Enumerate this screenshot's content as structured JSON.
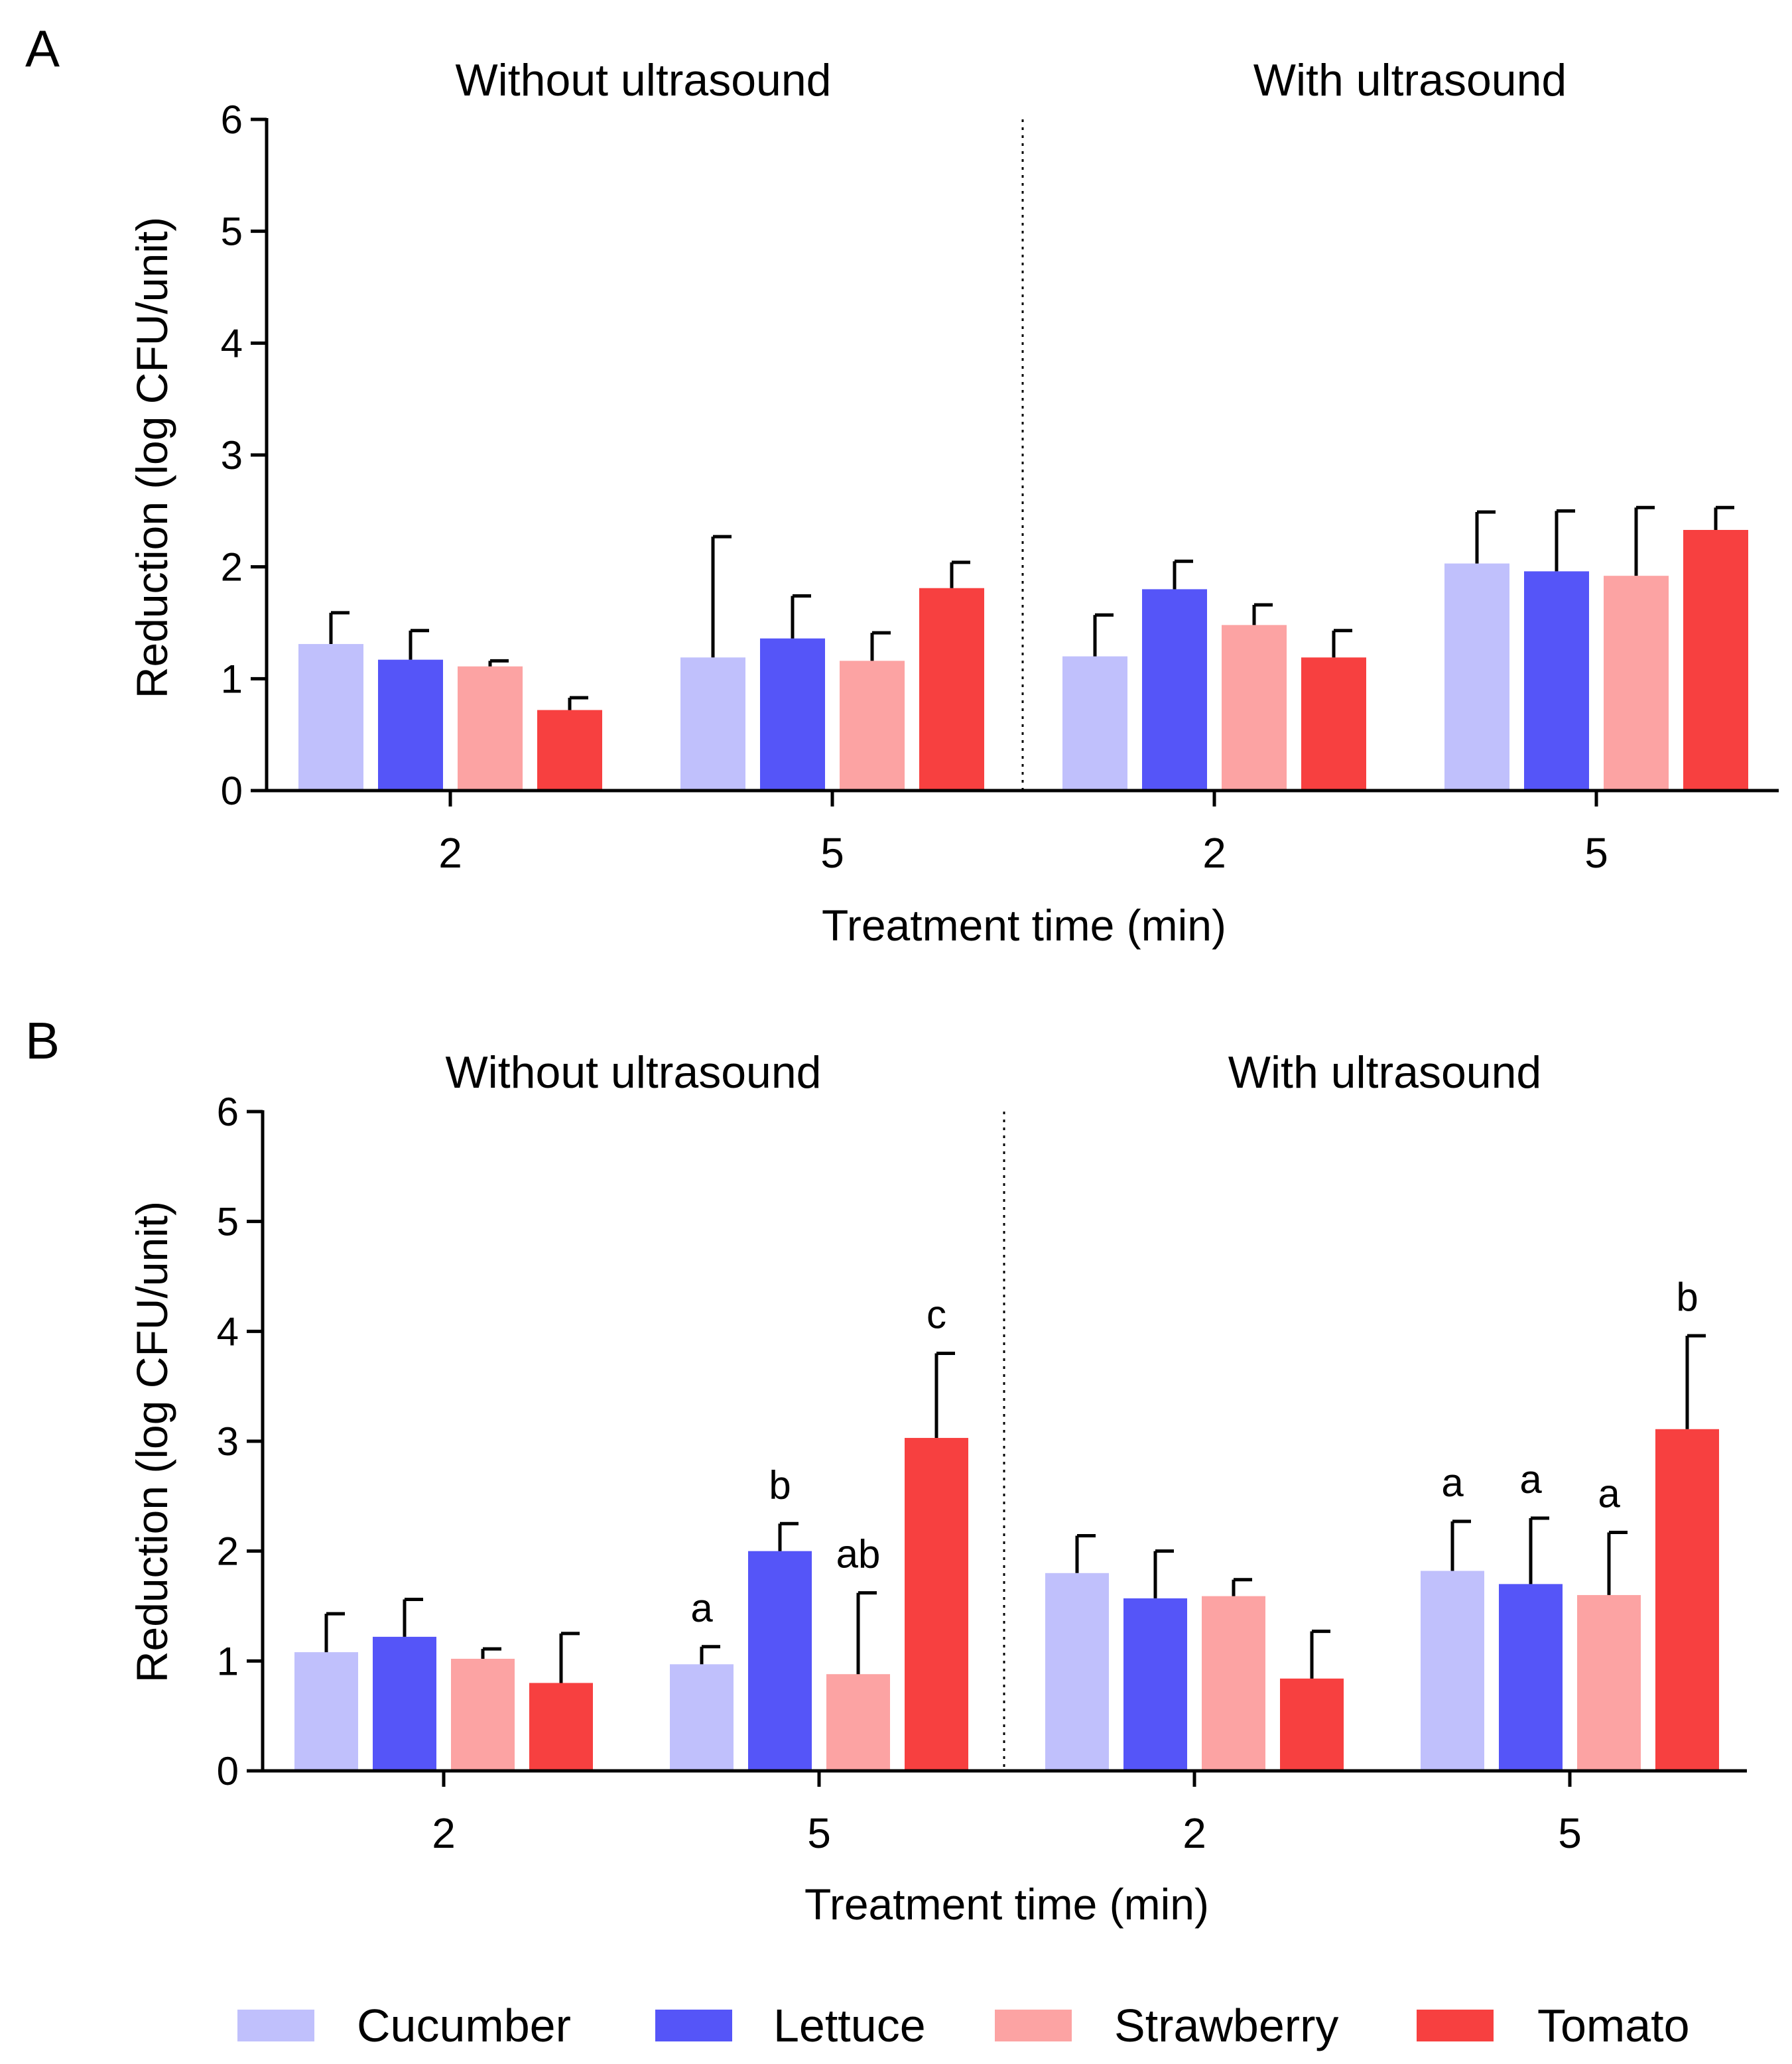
{
  "chart_data": [
    {
      "panel": "A",
      "type": "bar",
      "ylabel": "Reduction (log CFU/unit)",
      "xlabel": "Treatment time (min)",
      "ylim": [
        0,
        6
      ],
      "yticks": [
        "0",
        "1",
        "2",
        "3",
        "4",
        "5",
        "6"
      ],
      "conditions": [
        "Without ultrasound",
        "With ultrasound"
      ],
      "categories": [
        "2",
        "5",
        "2",
        "5"
      ],
      "series": [
        {
          "name": "Cucumber",
          "values": [
            1.31,
            1.19,
            1.2,
            2.03
          ],
          "errors": [
            0.28,
            1.08,
            0.37,
            0.46
          ]
        },
        {
          "name": "Lettuce",
          "values": [
            1.17,
            1.36,
            1.8,
            1.96
          ],
          "errors": [
            0.26,
            0.38,
            0.25,
            0.54
          ]
        },
        {
          "name": "Strawberry",
          "values": [
            1.11,
            1.16,
            1.48,
            1.92
          ],
          "errors": [
            0.05,
            0.25,
            0.18,
            0.61
          ]
        },
        {
          "name": "Tomato",
          "values": [
            0.72,
            1.81,
            1.19,
            2.33
          ],
          "errors": [
            0.11,
            0.23,
            0.24,
            0.2
          ]
        }
      ],
      "annotations": []
    },
    {
      "panel": "B",
      "type": "bar",
      "ylabel": "Reduction (log CFU/unit)",
      "xlabel": "Treatment time (min)",
      "ylim": [
        0,
        6
      ],
      "yticks": [
        "0",
        "1",
        "2",
        "3",
        "4",
        "5",
        "6"
      ],
      "conditions": [
        "Without ultrasound",
        "With ultrasound"
      ],
      "categories": [
        "2",
        "5",
        "2",
        "5"
      ],
      "series": [
        {
          "name": "Cucumber",
          "values": [
            1.08,
            0.97,
            1.8,
            1.82
          ],
          "errors": [
            0.35,
            0.16,
            0.34,
            0.45
          ]
        },
        {
          "name": "Lettuce",
          "values": [
            1.22,
            2.0,
            1.57,
            1.7
          ],
          "errors": [
            0.34,
            0.25,
            0.43,
            0.6
          ]
        },
        {
          "name": "Strawberry",
          "values": [
            1.02,
            0.88,
            1.59,
            1.6
          ],
          "errors": [
            0.09,
            0.74,
            0.15,
            0.57
          ]
        },
        {
          "name": "Tomato",
          "values": [
            0.8,
            3.03,
            0.84,
            3.11
          ],
          "errors": [
            0.45,
            0.77,
            0.43,
            0.85
          ]
        }
      ],
      "annotations": [
        {
          "group": 1,
          "series": 0,
          "label": "a"
        },
        {
          "group": 1,
          "series": 1,
          "label": "b"
        },
        {
          "group": 1,
          "series": 2,
          "label": "ab"
        },
        {
          "group": 1,
          "series": 3,
          "label": "c"
        },
        {
          "group": 3,
          "series": 0,
          "label": "a"
        },
        {
          "group": 3,
          "series": 1,
          "label": "a"
        },
        {
          "group": 3,
          "series": 2,
          "label": "a"
        },
        {
          "group": 3,
          "series": 3,
          "label": "b"
        }
      ]
    }
  ],
  "legend": {
    "placement": "bottom",
    "items": [
      {
        "name": "Cucumber",
        "color": "#c0c0fc"
      },
      {
        "name": "Lettuce",
        "color": "#5555f8"
      },
      {
        "name": "Strawberry",
        "color": "#fca3a3"
      },
      {
        "name": "Tomato",
        "color": "#f74040"
      }
    ]
  }
}
